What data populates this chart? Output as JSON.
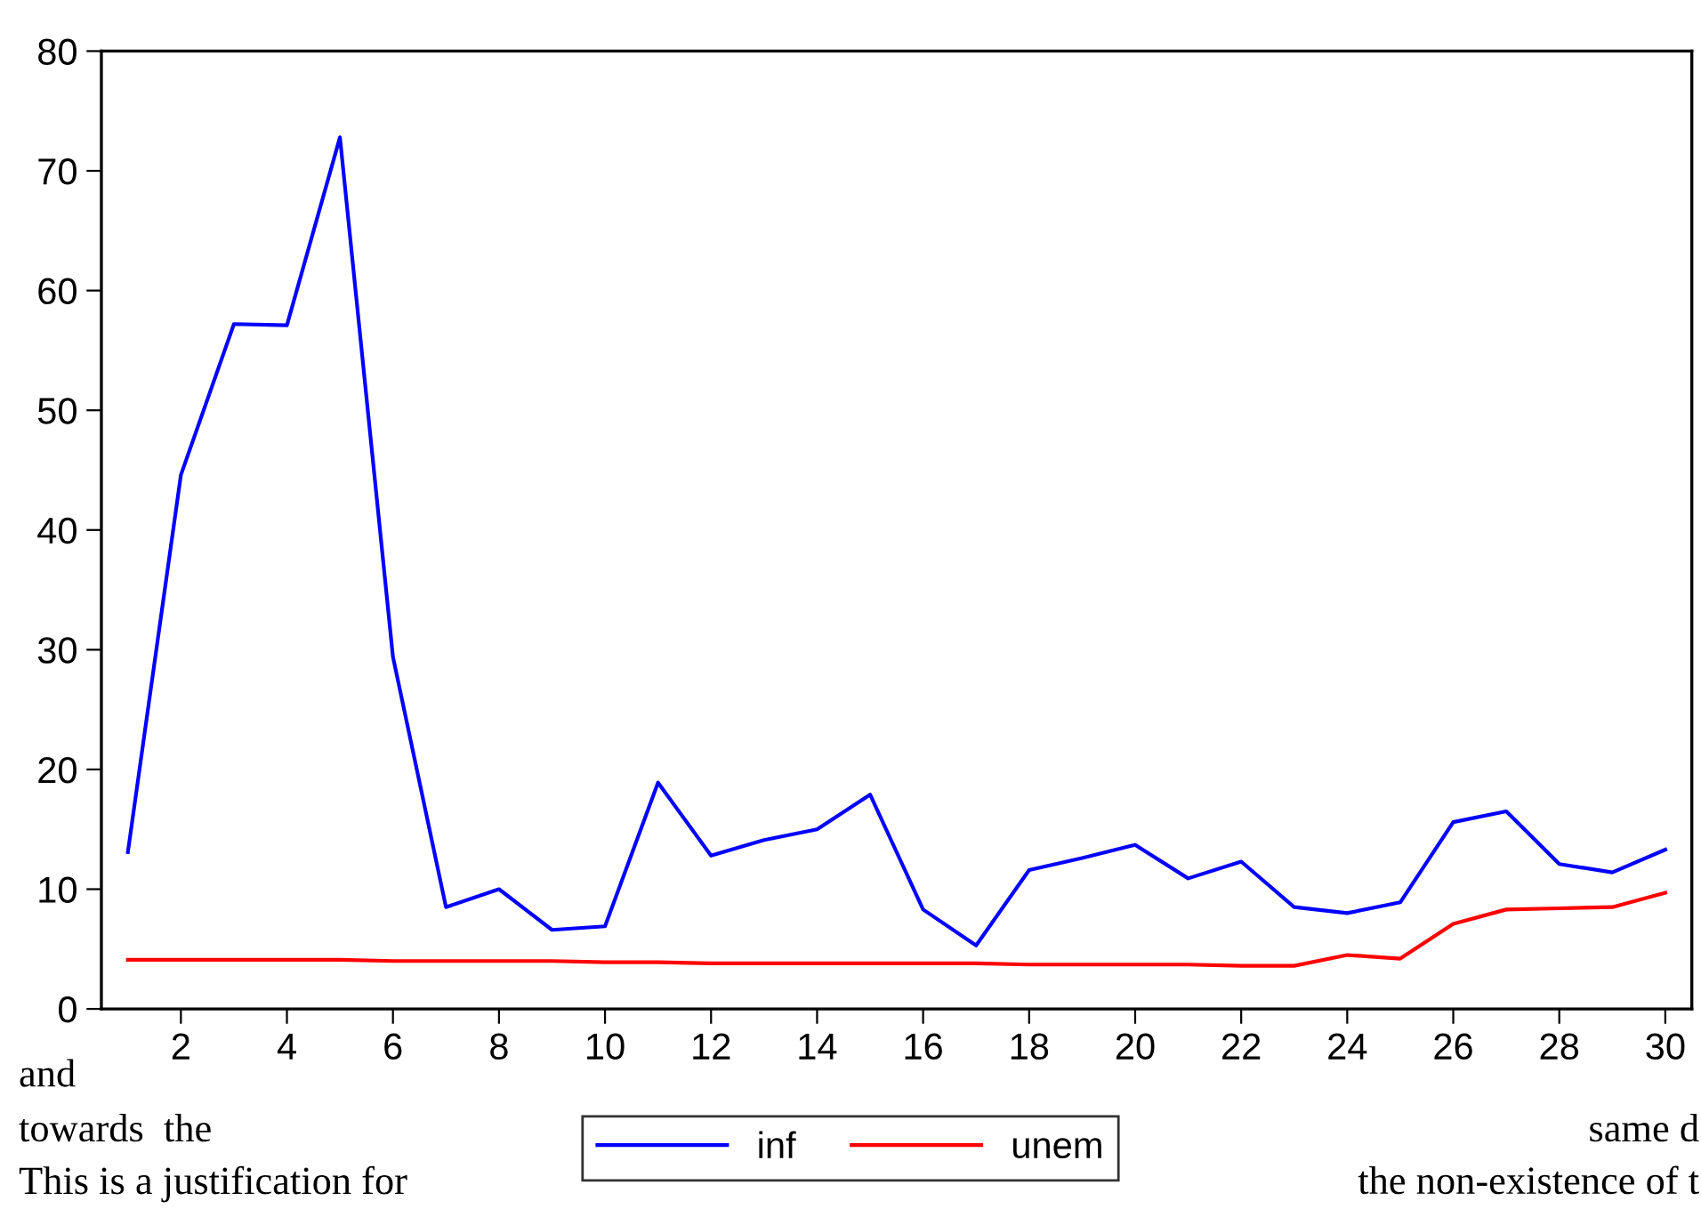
{
  "chart_data": {
    "type": "line",
    "x": [
      1,
      2,
      3,
      4,
      5,
      6,
      7,
      8,
      9,
      10,
      11,
      12,
      13,
      14,
      15,
      16,
      17,
      18,
      19,
      20,
      21,
      22,
      23,
      24,
      25,
      26,
      27,
      28,
      29,
      30
    ],
    "series": [
      {
        "name": "inf",
        "color": "#0000ff",
        "values": [
          13.1,
          44.6,
          57.2,
          57.1,
          72.8,
          29.4,
          8.5,
          10.0,
          6.6,
          6.9,
          18.9,
          12.8,
          14.1,
          15.0,
          17.9,
          8.3,
          5.3,
          11.6,
          12.6,
          13.7,
          10.9,
          12.3,
          8.5,
          8.0,
          8.9,
          15.6,
          16.5,
          12.1,
          11.4,
          13.3
        ]
      },
      {
        "name": "unem",
        "color": "#ff0000",
        "values": [
          4.1,
          4.1,
          4.1,
          4.1,
          4.1,
          4.0,
          4.0,
          4.0,
          4.0,
          3.9,
          3.9,
          3.8,
          3.8,
          3.8,
          3.8,
          3.8,
          3.8,
          3.7,
          3.7,
          3.7,
          3.7,
          3.6,
          3.6,
          4.5,
          4.2,
          7.1,
          8.3,
          8.4,
          8.5,
          9.7
        ]
      }
    ],
    "xlim": [
      0.5,
      30.5
    ],
    "xticks": [
      2,
      4,
      6,
      8,
      10,
      12,
      14,
      16,
      18,
      20,
      22,
      24,
      26,
      28,
      30
    ],
    "ylim": [
      0,
      80
    ],
    "yticks": [
      0,
      10,
      20,
      30,
      40,
      50,
      60,
      70,
      80
    ],
    "grid": false,
    "legend": "bottom",
    "line_style": "solid",
    "annotations": [
      "and",
      "towards  the",
      "This is a justification for",
      "same d",
      "the non-existence of t"
    ]
  }
}
